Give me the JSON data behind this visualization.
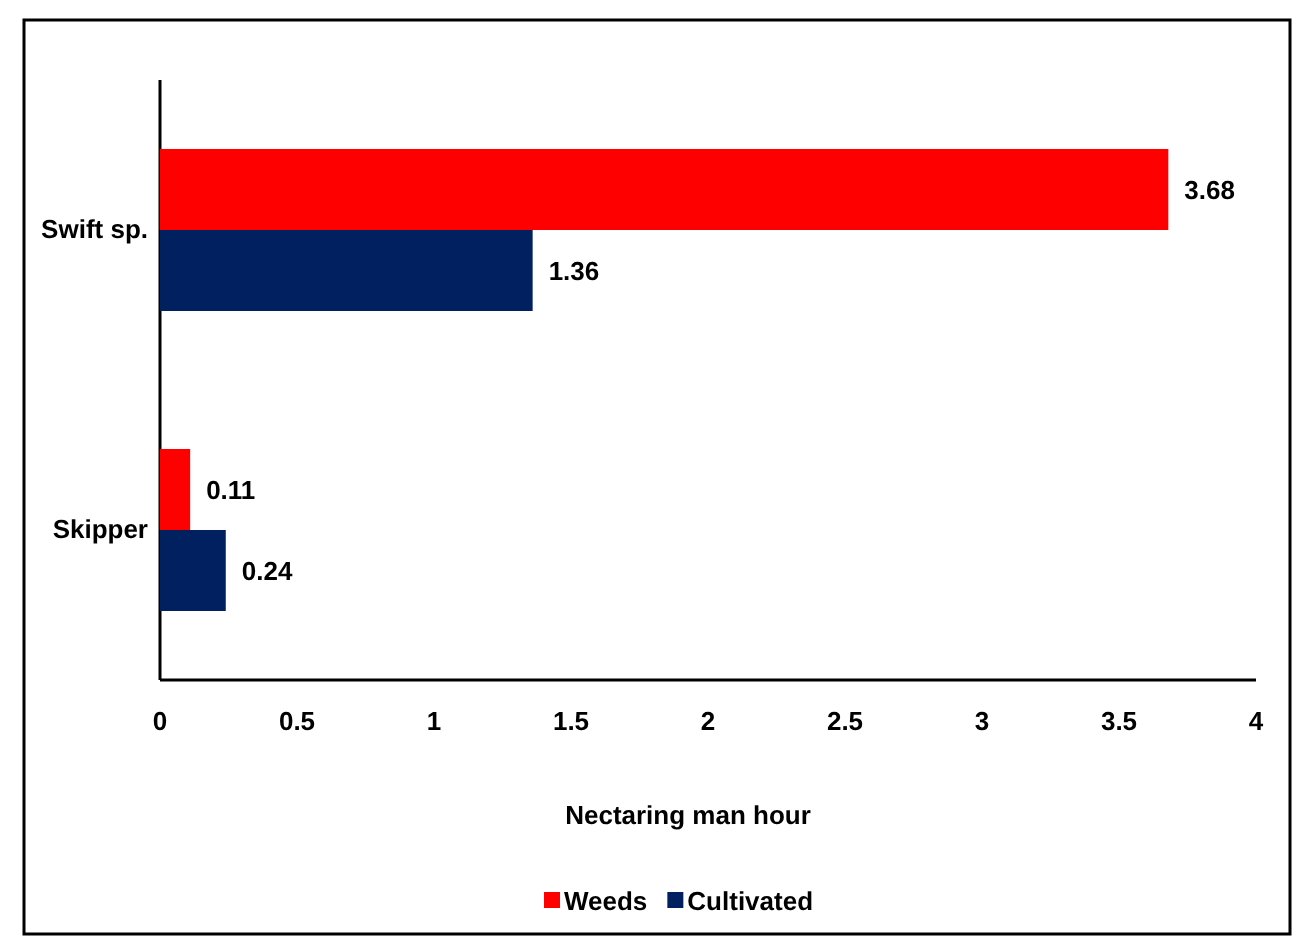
{
  "chart_data": {
    "type": "bar",
    "orientation": "horizontal",
    "xlabel": "Nectaring man hour",
    "categories": [
      "Swift sp.",
      "Skipper"
    ],
    "series": [
      {
        "name": "Weeds",
        "color": "#ff0000",
        "values": [
          3.68,
          0.11
        ]
      },
      {
        "name": "Cultivated",
        "color": "#002060",
        "values": [
          1.36,
          0.24
        ]
      }
    ],
    "xlim": [
      0,
      4
    ],
    "xticks": [
      0,
      0.5,
      1,
      1.5,
      2,
      2.5,
      3,
      3.5,
      4
    ],
    "data_labels": true,
    "legend": "bottom",
    "grid": false
  }
}
